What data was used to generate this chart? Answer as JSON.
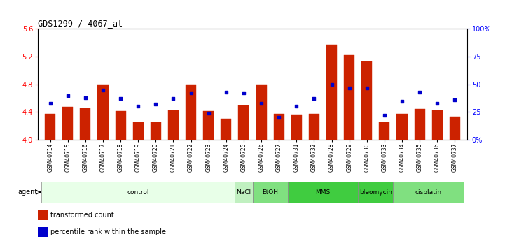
{
  "title": "GDS1299 / 4067_at",
  "samples": [
    "GSM40714",
    "GSM40715",
    "GSM40716",
    "GSM40717",
    "GSM40718",
    "GSM40719",
    "GSM40720",
    "GSM40721",
    "GSM40722",
    "GSM40723",
    "GSM40724",
    "GSM40725",
    "GSM40726",
    "GSM40727",
    "GSM40731",
    "GSM40732",
    "GSM40728",
    "GSM40729",
    "GSM40730",
    "GSM40733",
    "GSM40734",
    "GSM40735",
    "GSM40736",
    "GSM40737"
  ],
  "bar_values": [
    4.37,
    4.47,
    4.45,
    4.8,
    4.41,
    4.25,
    4.25,
    4.42,
    4.8,
    4.41,
    4.3,
    4.5,
    4.8,
    4.37,
    4.36,
    4.37,
    5.37,
    5.22,
    5.13,
    4.25,
    4.37,
    4.44,
    4.42,
    4.33
  ],
  "percentile_values": [
    33,
    40,
    38,
    45,
    37,
    30,
    32,
    37,
    42,
    24,
    43,
    42,
    33,
    20,
    30,
    37,
    50,
    47,
    47,
    22,
    35,
    43,
    33,
    36
  ],
  "groups": [
    {
      "label": "control",
      "start": 0,
      "end": 11,
      "color": "#e8ffe8"
    },
    {
      "label": "NaCl",
      "start": 11,
      "end": 12,
      "color": "#c0f0c0"
    },
    {
      "label": "EtOH",
      "start": 12,
      "end": 14,
      "color": "#80e080"
    },
    {
      "label": "MMS",
      "start": 14,
      "end": 18,
      "color": "#40cc40"
    },
    {
      "label": "bleomycin",
      "start": 18,
      "end": 20,
      "color": "#40cc40"
    },
    {
      "label": "cisplatin",
      "start": 20,
      "end": 24,
      "color": "#80e080"
    }
  ],
  "ylim_left": [
    4.0,
    5.6
  ],
  "ylim_right": [
    0,
    100
  ],
  "yticks_left": [
    4.0,
    4.4,
    4.8,
    5.2,
    5.6
  ],
  "yticks_right": [
    0,
    25,
    50,
    75,
    100
  ],
  "hlines": [
    4.4,
    4.8,
    5.2
  ],
  "bar_color": "#cc2200",
  "dot_color": "#0000cc",
  "bar_bottom": 4.0
}
